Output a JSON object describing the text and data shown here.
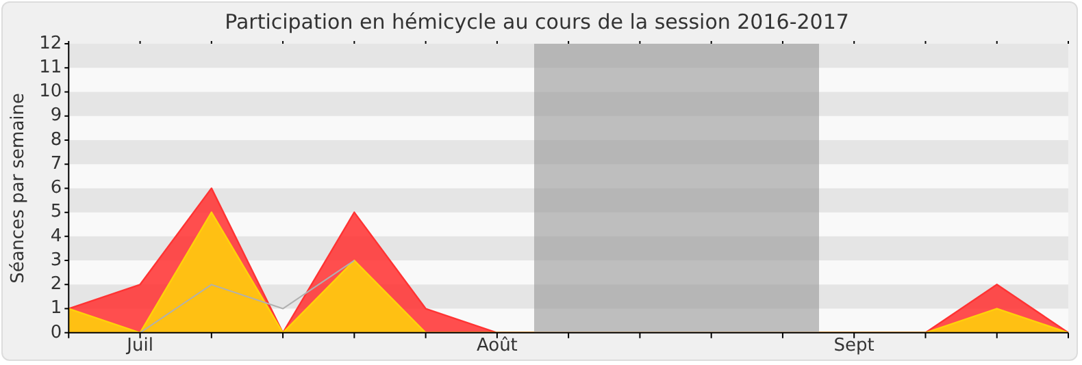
{
  "chart_data": {
    "type": "area",
    "title": "Participation en hémicycle au cours de la session 2016-2017",
    "ylabel": "Séances par semaine",
    "categories": [
      null,
      "Juil",
      null,
      null,
      null,
      null,
      "Août",
      null,
      null,
      null,
      null,
      "Sept",
      null,
      null,
      null
    ],
    "ylim": [
      0,
      12
    ],
    "yticks": [
      0,
      1,
      2,
      3,
      4,
      5,
      6,
      7,
      8,
      9,
      10,
      11,
      12
    ],
    "series": [
      {
        "color": "#ff3333",
        "values": [
          1,
          2,
          6,
          0,
          5,
          1,
          0,
          0,
          0,
          0,
          0,
          0,
          0,
          2,
          0
        ]
      },
      {
        "color": "#ffd20a",
        "values": [
          1,
          0,
          5,
          0,
          3,
          0,
          0,
          0,
          0,
          0,
          0,
          0,
          0,
          1,
          0
        ]
      },
      {
        "type": "line",
        "color": "#b0b0b0",
        "values": [
          null,
          0,
          2,
          1,
          3,
          null,
          null,
          null,
          null,
          null,
          null,
          null,
          null,
          null,
          null
        ]
      }
    ],
    "bands": [
      {
        "axis": "y",
        "from": 1,
        "to": 2,
        "color": "#e5e5e5"
      },
      {
        "axis": "y",
        "from": 3,
        "to": 4,
        "color": "#e5e5e5"
      },
      {
        "axis": "y",
        "from": 5,
        "to": 6,
        "color": "#e5e5e5"
      },
      {
        "axis": "y",
        "from": 7,
        "to": 8,
        "color": "#e5e5e5"
      },
      {
        "axis": "y",
        "from": 9,
        "to": 10,
        "color": "#e5e5e5"
      },
      {
        "axis": "y",
        "from": 11,
        "to": 12,
        "color": "#e5e5e5"
      }
    ],
    "legend": false,
    "marker": "none"
  }
}
